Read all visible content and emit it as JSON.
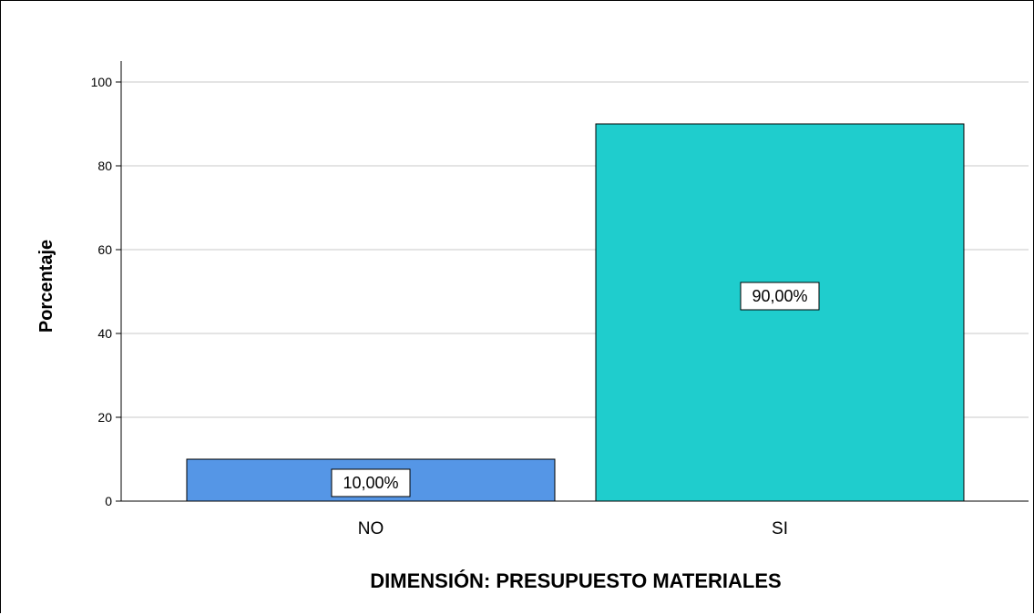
{
  "chart_data": {
    "type": "bar",
    "categories": [
      "NO",
      "SI"
    ],
    "values": [
      10,
      90
    ],
    "data_labels": [
      "10,00%",
      "90,00%"
    ],
    "title": "",
    "xlabel": "DIMENSIÓN: PRESUPUESTO MATERIALES",
    "ylabel": "Porcentaje",
    "ylim": [
      0,
      100
    ],
    "yticks": [
      0,
      20,
      40,
      60,
      80,
      100
    ],
    "ytick_labels": [
      "0",
      "20",
      "40",
      "60",
      "80",
      "100"
    ],
    "grid": true,
    "legend": "none",
    "colors": [
      "#5596e6",
      "#1fcdcd"
    ],
    "grid_color": "#c8c8c8",
    "edge_color": "#000000"
  }
}
